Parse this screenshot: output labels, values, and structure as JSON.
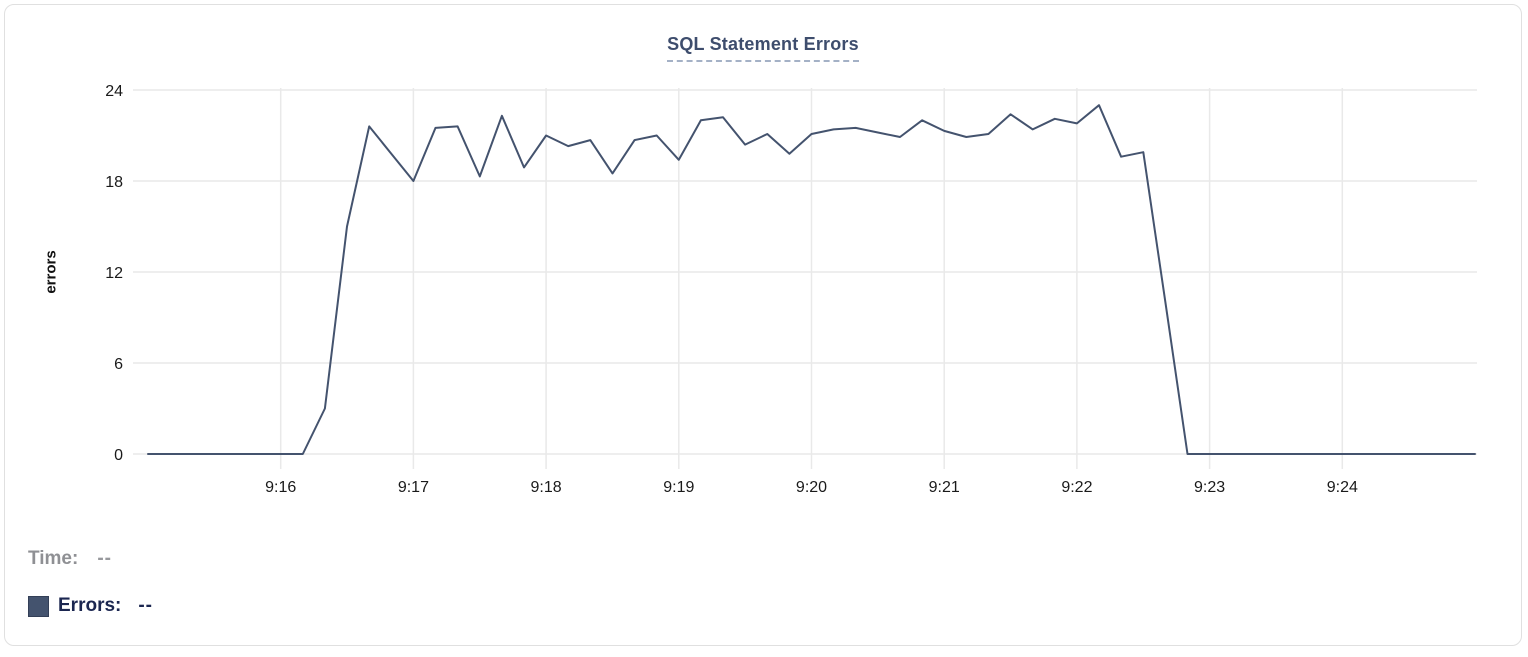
{
  "readout": {
    "time_label": "Time:",
    "time_value": "--",
    "errors_label": "Errors:",
    "errors_value": "--"
  },
  "colors": {
    "line": "#44536e",
    "legend_swatch": "#44536e",
    "title": "#3e4d6d",
    "title_underline": "#a4b1c6",
    "gridline": "#e9e9e9",
    "tick_label": "#1a1a1a",
    "time_label": "#8f9094",
    "errors_label": "#1b2650",
    "card_border": "#e0e0e0"
  },
  "chart_data": {
    "type": "line",
    "title": "SQL Statement Errors",
    "xlabel": "",
    "ylabel": "errors",
    "ylim": [
      0,
      24
    ],
    "yticks": [
      0,
      6,
      12,
      18,
      24
    ],
    "xtick_labels": [
      "9:16",
      "9:17",
      "9:18",
      "9:19",
      "9:20",
      "9:21",
      "9:22",
      "9:23",
      "9:24"
    ],
    "x_start_time": "9:15:00",
    "x_end_time": "9:25:00",
    "sample_interval_seconds": 10,
    "grid": true,
    "legend_position": "bottom-left",
    "series": [
      {
        "name": "Errors",
        "color": "#44536e",
        "times": [
          "9:15:00",
          "9:15:10",
          "9:15:20",
          "9:15:30",
          "9:15:40",
          "9:15:50",
          "9:16:00",
          "9:16:10",
          "9:16:20",
          "9:16:30",
          "9:16:40",
          "9:16:50",
          "9:17:00",
          "9:17:10",
          "9:17:20",
          "9:17:30",
          "9:17:40",
          "9:17:50",
          "9:18:00",
          "9:18:10",
          "9:18:20",
          "9:18:30",
          "9:18:40",
          "9:18:50",
          "9:19:00",
          "9:19:10",
          "9:19:20",
          "9:19:30",
          "9:19:40",
          "9:19:50",
          "9:20:00",
          "9:20:10",
          "9:20:20",
          "9:20:30",
          "9:20:40",
          "9:20:50",
          "9:21:00",
          "9:21:10",
          "9:21:20",
          "9:21:30",
          "9:21:40",
          "9:21:50",
          "9:22:00",
          "9:22:10",
          "9:22:20",
          "9:22:30",
          "9:22:40",
          "9:22:50",
          "9:23:00",
          "9:23:10",
          "9:23:20",
          "9:23:30",
          "9:23:40",
          "9:23:50",
          "9:24:00",
          "9:24:10",
          "9:24:20",
          "9:24:30",
          "9:24:40",
          "9:24:50",
          "9:25:00"
        ],
        "values": [
          0,
          0,
          0,
          0,
          0,
          0,
          0,
          0,
          3,
          15,
          21.6,
          19.8,
          18,
          21.5,
          21.6,
          18.3,
          22.3,
          18.9,
          21,
          20.3,
          20.7,
          18.5,
          20.7,
          21,
          19.4,
          22,
          22.2,
          20.4,
          21.1,
          19.8,
          21.1,
          21.4,
          21.5,
          21.2,
          20.9,
          22,
          21.3,
          20.9,
          21.1,
          22.4,
          21.4,
          22.1,
          21.8,
          23,
          19.6,
          19.9,
          10,
          0,
          0,
          0,
          0,
          0,
          0,
          0,
          0,
          0,
          0,
          0,
          0,
          0,
          0
        ]
      }
    ]
  }
}
